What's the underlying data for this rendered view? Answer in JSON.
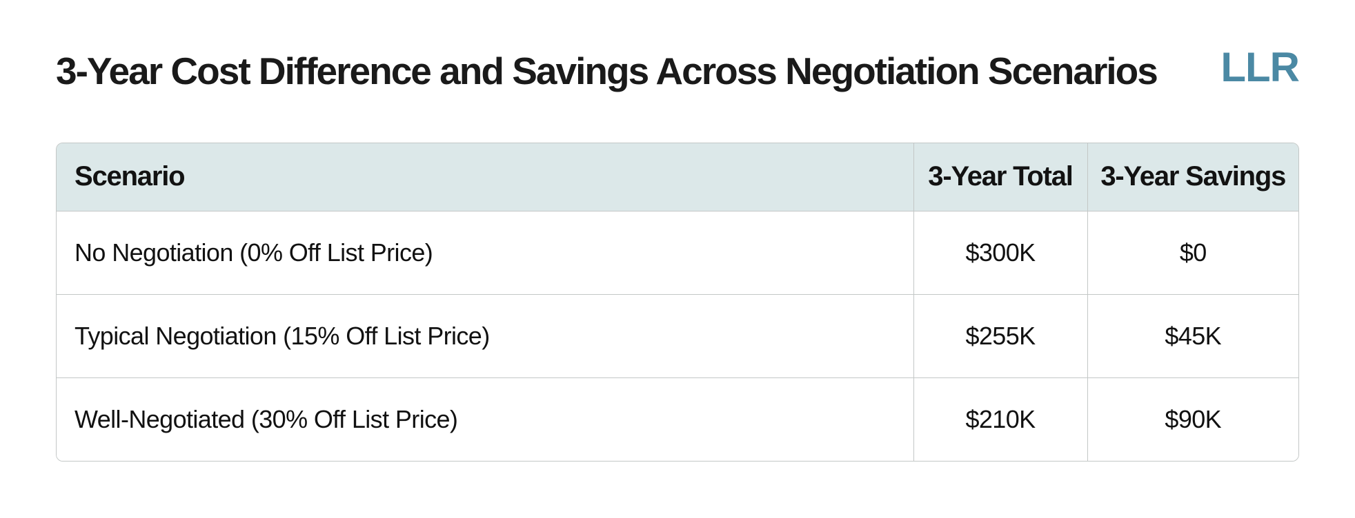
{
  "page": {
    "title": "3-Year Cost Difference and Savings Across Negotiation Scenarios",
    "logo_text": "LLR"
  },
  "colors": {
    "logo": "#4b89a4",
    "header_bg": "#dce8e9",
    "border": "#c3c7c6",
    "text": "#161616"
  },
  "table": {
    "columns": [
      "Scenario",
      "3-Year Total",
      "3-Year Savings"
    ],
    "rows": [
      {
        "scenario": "No Negotiation (0% Off List Price)",
        "total": "$300K",
        "savings": "$0"
      },
      {
        "scenario": "Typical Negotiation (15% Off List Price)",
        "total": "$255K",
        "savings": "$45K"
      },
      {
        "scenario": "Well-Negotiated (30% Off List Price)",
        "total": "$210K",
        "savings": "$90K"
      }
    ]
  },
  "chart_data": {
    "type": "table",
    "title": "3-Year Cost Difference and Savings Across Negotiation Scenarios",
    "columns": [
      "Scenario",
      "3-Year Total",
      "3-Year Savings"
    ],
    "categories": [
      "No Negotiation (0% Off List Price)",
      "Typical Negotiation (15% Off List Price)",
      "Well-Negotiated (30% Off List Price)"
    ],
    "series": [
      {
        "name": "3-Year Total ($K)",
        "values": [
          300,
          255,
          210
        ]
      },
      {
        "name": "3-Year Savings ($K)",
        "values": [
          0,
          45,
          90
        ]
      }
    ]
  }
}
